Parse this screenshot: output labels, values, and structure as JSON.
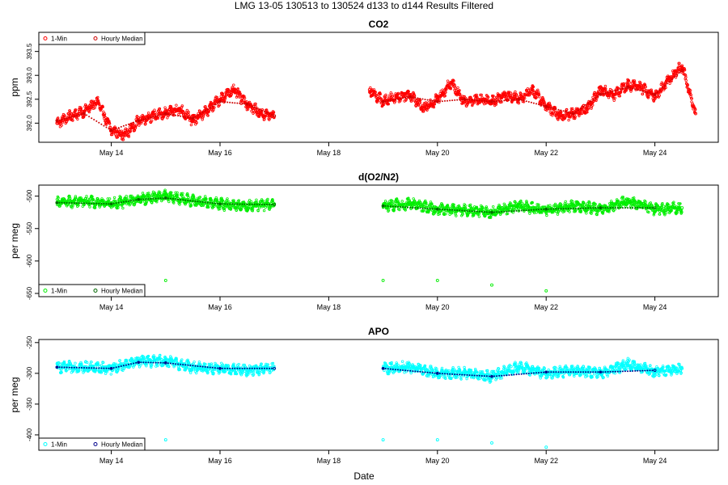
{
  "figure": {
    "title": "LMG   13-05    130513 to 130524    d133 to d144   Results Filtered",
    "x_axis_title": "Date"
  },
  "chart_data": [
    {
      "type": "scatter",
      "title": "CO2",
      "ylabel": "ppm",
      "xlim": [
        "2013-05-12T16:00",
        "2013-05-25T04:00"
      ],
      "ylim": [
        391.6,
        393.9
      ],
      "x_ticks": [
        {
          "date": "2013-05-14",
          "label": "May 14"
        },
        {
          "date": "2013-05-16",
          "label": "May 16"
        },
        {
          "date": "2013-05-18",
          "label": "May 18"
        },
        {
          "date": "2013-05-20",
          "label": "May 20"
        },
        {
          "date": "2013-05-22",
          "label": "May 22"
        },
        {
          "date": "2013-05-24",
          "label": "May 24"
        }
      ],
      "y_ticks": [
        392.0,
        392.5,
        393.0,
        393.5
      ],
      "y_tick_labels": [
        "392.0",
        "392.5",
        "393.0",
        "393.5"
      ],
      "grid": false,
      "legend_position": "top-left",
      "series": [
        {
          "name": "1-Min",
          "color": "#ff0000",
          "data": [
            [
              "2013-05-13T00:00",
              392.0
            ],
            [
              "2013-05-13T06:00",
              392.15
            ],
            [
              "2013-05-13T12:00",
              392.25
            ],
            [
              "2013-05-13T18:00",
              392.45
            ],
            [
              "2013-05-14T00:00",
              391.85
            ],
            [
              "2013-05-14T06:00",
              391.75
            ],
            [
              "2013-05-14T12:00",
              392.05
            ],
            [
              "2013-05-14T18:00",
              392.15
            ],
            [
              "2013-05-15T00:00",
              392.2
            ],
            [
              "2013-05-15T06:00",
              392.3
            ],
            [
              "2013-05-15T12:00",
              392.05
            ],
            [
              "2013-05-15T18:00",
              392.25
            ],
            [
              "2013-05-16T00:00",
              392.5
            ],
            [
              "2013-05-16T06:00",
              392.7
            ],
            [
              "2013-05-16T12:00",
              392.4
            ],
            [
              "2013-05-16T18:00",
              392.2
            ],
            [
              "2013-05-17T00:00",
              392.15
            ],
            [
              "2013-05-18T18:00",
              392.7
            ],
            [
              "2013-05-19T00:00",
              392.45
            ],
            [
              "2013-05-19T06:00",
              392.55
            ],
            [
              "2013-05-19T12:00",
              392.6
            ],
            [
              "2013-05-19T18:00",
              392.3
            ],
            [
              "2013-05-20T00:00",
              392.5
            ],
            [
              "2013-05-20T06:00",
              392.85
            ],
            [
              "2013-05-20T12:00",
              392.45
            ],
            [
              "2013-05-20T18:00",
              392.5
            ],
            [
              "2013-05-21T00:00",
              392.45
            ],
            [
              "2013-05-21T06:00",
              392.6
            ],
            [
              "2013-05-21T12:00",
              392.5
            ],
            [
              "2013-05-21T18:00",
              392.7
            ],
            [
              "2013-05-22T00:00",
              392.35
            ],
            [
              "2013-05-22T06:00",
              392.15
            ],
            [
              "2013-05-22T12:00",
              392.2
            ],
            [
              "2013-05-22T18:00",
              392.3
            ],
            [
              "2013-05-23T00:00",
              392.7
            ],
            [
              "2013-05-23T06:00",
              392.6
            ],
            [
              "2013-05-23T12:00",
              392.8
            ],
            [
              "2013-05-23T18:00",
              392.75
            ],
            [
              "2013-05-24T00:00",
              392.55
            ],
            [
              "2013-05-24T06:00",
              392.9
            ],
            [
              "2013-05-24T12:00",
              393.2
            ],
            [
              "2013-05-24T18:00",
              392.2
            ]
          ]
        },
        {
          "name": "Hourly Median",
          "color": "#cc0000",
          "data": [
            [
              "2013-05-13T00:00",
              392.05
            ],
            [
              "2013-05-13T12:00",
              392.2
            ],
            [
              "2013-05-14T00:00",
              391.85
            ],
            [
              "2013-05-14T12:00",
              392.05
            ],
            [
              "2013-05-15T00:00",
              392.2
            ],
            [
              "2013-05-15T12:00",
              392.1
            ],
            [
              "2013-05-16T00:00",
              392.45
            ],
            [
              "2013-05-16T12:00",
              392.4
            ],
            [
              "2013-05-17T00:00",
              392.15
            ],
            [
              "2013-05-19T00:00",
              392.45
            ],
            [
              "2013-05-19T12:00",
              392.55
            ],
            [
              "2013-05-20T00:00",
              392.45
            ],
            [
              "2013-05-20T12:00",
              392.5
            ],
            [
              "2013-05-21T00:00",
              392.45
            ],
            [
              "2013-05-21T12:00",
              392.5
            ],
            [
              "2013-05-22T00:00",
              392.35
            ],
            [
              "2013-05-22T12:00",
              392.2
            ],
            [
              "2013-05-23T00:00",
              392.6
            ],
            [
              "2013-05-23T12:00",
              392.75
            ],
            [
              "2013-05-24T00:00",
              392.6
            ],
            [
              "2013-05-24T12:00",
              393.1
            ]
          ]
        }
      ]
    },
    {
      "type": "scatter",
      "title": "d(O2/N2)",
      "ylabel": "per meg",
      "xlim": [
        "2013-05-12T16:00",
        "2013-05-25T04:00"
      ],
      "ylim": [
        -655,
        -483
      ],
      "x_ticks": [
        {
          "date": "2013-05-14",
          "label": "May 14"
        },
        {
          "date": "2013-05-16",
          "label": "May 16"
        },
        {
          "date": "2013-05-18",
          "label": "May 18"
        },
        {
          "date": "2013-05-20",
          "label": "May 20"
        },
        {
          "date": "2013-05-22",
          "label": "May 22"
        },
        {
          "date": "2013-05-24",
          "label": "May 24"
        }
      ],
      "y_ticks": [
        -650,
        -600,
        -550,
        -500
      ],
      "y_tick_labels": [
        "-650",
        "-600",
        "-550",
        "-500"
      ],
      "grid": false,
      "legend_position": "bottom-left",
      "series": [
        {
          "name": "1-Min",
          "color": "#00ee00",
          "data": [
            [
              "2013-05-13T00:00",
              -510
            ],
            [
              "2013-05-13T12:00",
              -508
            ],
            [
              "2013-05-14T00:00",
              -512
            ],
            [
              "2013-05-14T12:00",
              -505
            ],
            [
              "2013-05-15T00:00",
              -500
            ],
            [
              "2013-05-15T12:00",
              -507
            ],
            [
              "2013-05-16T00:00",
              -512
            ],
            [
              "2013-05-16T12:00",
              -515
            ],
            [
              "2013-05-17T00:00",
              -512
            ],
            [
              "2013-05-15T00:00",
              -630
            ],
            [
              "2013-05-19T00:00",
              -515
            ],
            [
              "2013-05-19T12:00",
              -512
            ],
            [
              "2013-05-20T00:00",
              -520
            ],
            [
              "2013-05-20T12:00",
              -522
            ],
            [
              "2013-05-21T00:00",
              -525
            ],
            [
              "2013-05-21T12:00",
              -515
            ],
            [
              "2013-05-22T00:00",
              -522
            ],
            [
              "2013-05-22T12:00",
              -515
            ],
            [
              "2013-05-23T00:00",
              -520
            ],
            [
              "2013-05-23T12:00",
              -508
            ],
            [
              "2013-05-24T00:00",
              -520
            ],
            [
              "2013-05-24T12:00",
              -518
            ],
            [
              "2013-05-19T00:00",
              -630
            ],
            [
              "2013-05-20T00:00",
              -630
            ],
            [
              "2013-05-21T00:00",
              -637
            ],
            [
              "2013-05-22T00:00",
              -646
            ]
          ]
        },
        {
          "name": "Hourly Median",
          "color": "#006600",
          "data": [
            [
              "2013-05-13T00:00",
              -510
            ],
            [
              "2013-05-14T00:00",
              -512
            ],
            [
              "2013-05-14T12:00",
              -505
            ],
            [
              "2013-05-15T00:00",
              -503
            ],
            [
              "2013-05-16T00:00",
              -512
            ],
            [
              "2013-05-17T00:00",
              -513
            ],
            [
              "2013-05-19T00:00",
              -515
            ],
            [
              "2013-05-20T00:00",
              -520
            ],
            [
              "2013-05-21T00:00",
              -525
            ],
            [
              "2013-05-22T00:00",
              -520
            ],
            [
              "2013-05-23T00:00",
              -518
            ],
            [
              "2013-05-24T00:00",
              -518
            ]
          ]
        }
      ]
    },
    {
      "type": "scatter",
      "title": "APO",
      "ylabel": "per meg",
      "xlim": [
        "2013-05-12T16:00",
        "2013-05-25T04:00"
      ],
      "ylim": [
        -425,
        -245
      ],
      "x_ticks": [
        {
          "date": "2013-05-14",
          "label": "May 14"
        },
        {
          "date": "2013-05-16",
          "label": "May 16"
        },
        {
          "date": "2013-05-18",
          "label": "May 18"
        },
        {
          "date": "2013-05-20",
          "label": "May 20"
        },
        {
          "date": "2013-05-22",
          "label": "May 22"
        },
        {
          "date": "2013-05-24",
          "label": "May 24"
        }
      ],
      "y_ticks": [
        -400,
        -350,
        -300,
        -250
      ],
      "y_tick_labels": [
        "-400",
        "-350",
        "-300",
        "-250"
      ],
      "grid": false,
      "legend_position": "bottom-left",
      "series": [
        {
          "name": "1-Min",
          "color": "#00ffff",
          "data": [
            [
              "2013-05-13T00:00",
              -290
            ],
            [
              "2013-05-13T12:00",
              -290
            ],
            [
              "2013-05-14T00:00",
              -292
            ],
            [
              "2013-05-14T12:00",
              -280
            ],
            [
              "2013-05-15T00:00",
              -280
            ],
            [
              "2013-05-15T12:00",
              -290
            ],
            [
              "2013-05-16T00:00",
              -292
            ],
            [
              "2013-05-16T12:00",
              -295
            ],
            [
              "2013-05-17T00:00",
              -292
            ],
            [
              "2013-05-15T00:00",
              -408
            ],
            [
              "2013-05-19T00:00",
              -292
            ],
            [
              "2013-05-19T12:00",
              -290
            ],
            [
              "2013-05-20T00:00",
              -300
            ],
            [
              "2013-05-20T12:00",
              -300
            ],
            [
              "2013-05-21T00:00",
              -305
            ],
            [
              "2013-05-21T12:00",
              -290
            ],
            [
              "2013-05-22T00:00",
              -300
            ],
            [
              "2013-05-22T12:00",
              -295
            ],
            [
              "2013-05-23T00:00",
              -300
            ],
            [
              "2013-05-23T12:00",
              -285
            ],
            [
              "2013-05-24T00:00",
              -298
            ],
            [
              "2013-05-24T12:00",
              -292
            ],
            [
              "2013-05-19T00:00",
              -408
            ],
            [
              "2013-05-20T00:00",
              -408
            ],
            [
              "2013-05-21T00:00",
              -413
            ],
            [
              "2013-05-22T00:00",
              -420
            ]
          ]
        },
        {
          "name": "Hourly Median",
          "color": "#00008b",
          "data": [
            [
              "2013-05-13T00:00",
              -290
            ],
            [
              "2013-05-14T00:00",
              -292
            ],
            [
              "2013-05-14T12:00",
              -282
            ],
            [
              "2013-05-15T00:00",
              -283
            ],
            [
              "2013-05-16T00:00",
              -292
            ],
            [
              "2013-05-17T00:00",
              -292
            ],
            [
              "2013-05-19T00:00",
              -292
            ],
            [
              "2013-05-20T00:00",
              -300
            ],
            [
              "2013-05-21T00:00",
              -305
            ],
            [
              "2013-05-22T00:00",
              -298
            ],
            [
              "2013-05-23T00:00",
              -298
            ],
            [
              "2013-05-24T00:00",
              -295
            ]
          ]
        }
      ]
    }
  ]
}
